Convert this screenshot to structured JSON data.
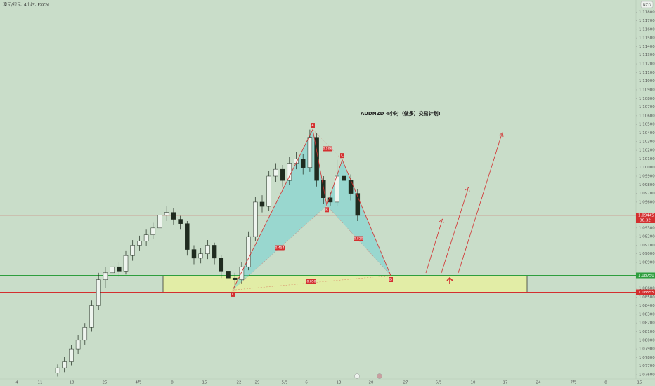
{
  "chart_data": {
    "type": "candlestick",
    "symbol_header": "澳元/纽元, 4小时, FXCM",
    "currency_badge": "NZD",
    "title": "AUDNZD 4小时（做多）交易计划!",
    "ylim": [
      1.0747,
      1.1194
    ],
    "yticks": [
      {
        "value": 1.076,
        "label": "1.07600"
      },
      {
        "value": 1.077,
        "label": "1.07700"
      },
      {
        "value": 1.078,
        "label": "1.07800"
      },
      {
        "value": 1.079,
        "label": "1.07900"
      },
      {
        "value": 1.08,
        "label": "1.08000"
      },
      {
        "value": 1.081,
        "label": "1.08100"
      },
      {
        "value": 1.082,
        "label": "1.08200"
      },
      {
        "value": 1.083,
        "label": "1.08300"
      },
      {
        "value": 1.084,
        "label": "1.08400"
      },
      {
        "value": 1.085,
        "label": "1.08500"
      },
      {
        "value": 1.086,
        "label": "1.08600"
      },
      {
        "value": 1.089,
        "label": "1.08900"
      },
      {
        "value": 1.09,
        "label": "1.09000"
      },
      {
        "value": 1.091,
        "label": "1.09100"
      },
      {
        "value": 1.092,
        "label": "1.09200"
      },
      {
        "value": 1.093,
        "label": "1.09300"
      },
      {
        "value": 1.096,
        "label": "1.09600"
      },
      {
        "value": 1.097,
        "label": "1.09700"
      },
      {
        "value": 1.098,
        "label": "1.09800"
      },
      {
        "value": 1.099,
        "label": "1.09900"
      },
      {
        "value": 1.1,
        "label": "1.10000"
      },
      {
        "value": 1.101,
        "label": "1.10100"
      },
      {
        "value": 1.102,
        "label": "1.10200"
      },
      {
        "value": 1.103,
        "label": "1.10300"
      },
      {
        "value": 1.104,
        "label": "1.10400"
      },
      {
        "value": 1.105,
        "label": "1.10500"
      },
      {
        "value": 1.106,
        "label": "1.10600"
      },
      {
        "value": 1.107,
        "label": "1.10700"
      },
      {
        "value": 1.108,
        "label": "1.10800"
      },
      {
        "value": 1.109,
        "label": "1.10900"
      },
      {
        "value": 1.11,
        "label": "1.11000"
      },
      {
        "value": 1.111,
        "label": "1.11100"
      },
      {
        "value": 1.112,
        "label": "1.11200"
      },
      {
        "value": 1.113,
        "label": "1.11300"
      },
      {
        "value": 1.114,
        "label": "1.11400"
      },
      {
        "value": 1.115,
        "label": "1.11500"
      },
      {
        "value": 1.116,
        "label": "1.11600"
      },
      {
        "value": 1.117,
        "label": "1.11700"
      },
      {
        "value": 1.118,
        "label": "1.11800"
      }
    ],
    "x_labels": [
      "4",
      "11",
      "18",
      "25",
      "4月",
      "8",
      "15",
      "22",
      "29",
      "5月",
      "6",
      "13",
      "20",
      "27",
      "6月",
      "10",
      "17",
      "24",
      "7月",
      "8",
      "15"
    ],
    "up_color": "#eef4ee",
    "down_color": "#1f2b1f",
    "open": [
      1.0762,
      1.0768,
      1.0775,
      1.079,
      1.08,
      1.0815,
      1.084,
      1.087,
      1.0878,
      1.0885,
      1.088,
      1.0898,
      1.091,
      1.0915,
      1.0922,
      1.093,
      1.0945,
      1.0948,
      1.094,
      1.0935,
      1.0905,
      1.0895,
      1.09,
      1.091,
      1.0895,
      1.088,
      1.0872,
      1.087,
      1.0885,
      1.092,
      1.096,
      1.0955,
      1.099,
      1.0998,
      1.0985,
      1.1005,
      1.101,
      1.1,
      1.1035,
      1.0985,
      1.0965,
      1.096,
      1.099,
      1.0985,
      1.097
    ],
    "high": [
      1.0772,
      1.0781,
      1.0795,
      1.0806,
      1.082,
      1.0846,
      1.0878,
      1.0885,
      1.0892,
      1.089,
      1.0904,
      1.0916,
      1.0921,
      1.0928,
      1.0936,
      1.0951,
      1.0955,
      1.0953,
      1.0944,
      1.0938,
      1.091,
      1.0907,
      1.0916,
      1.0913,
      1.0899,
      1.0885,
      1.0878,
      1.089,
      1.0926,
      1.0966,
      1.0968,
      1.0996,
      1.1005,
      1.1003,
      1.1012,
      1.1018,
      1.1016,
      1.1044,
      1.104,
      1.099,
      1.0972,
      1.1009,
      1.0998,
      1.0992,
      1.0975
    ],
    "low": [
      1.0758,
      1.0763,
      1.0771,
      1.0784,
      1.0795,
      1.081,
      1.0835,
      1.086,
      1.0872,
      1.0873,
      1.0876,
      1.0892,
      1.0904,
      1.0909,
      1.0917,
      1.0925,
      1.0938,
      1.0934,
      1.0928,
      1.0898,
      1.0888,
      1.0889,
      1.0894,
      1.0888,
      1.0872,
      1.0862,
      1.0858,
      1.0865,
      1.0881,
      1.0915,
      1.0948,
      1.095,
      1.0983,
      1.0978,
      1.098,
      1.0998,
      1.0992,
      1.0995,
      1.0978,
      1.0958,
      1.0956,
      1.0955,
      1.0975,
      1.0962,
      1.0938
    ],
    "close": [
      1.0768,
      1.0775,
      1.079,
      1.08,
      1.0815,
      1.084,
      1.087,
      1.0878,
      1.0885,
      1.088,
      1.0898,
      1.091,
      1.0915,
      1.0922,
      1.093,
      1.0945,
      1.0948,
      1.094,
      1.0935,
      1.0905,
      1.0895,
      1.09,
      1.091,
      1.0895,
      1.088,
      1.0872,
      1.087,
      1.0885,
      1.092,
      1.096,
      1.0955,
      1.099,
      1.0998,
      1.0985,
      1.1005,
      1.101,
      1.1,
      1.1035,
      1.0985,
      1.0965,
      1.096,
      1.099,
      1.0985,
      1.097,
      1.09445
    ],
    "current_price": {
      "value": 1.09445,
      "label": "1.09445",
      "countdown": "06:32",
      "color": "#d32f2f"
    },
    "levels": [
      {
        "value": 1.0875,
        "label": "1.08750",
        "color": "#2e9e3e"
      },
      {
        "value": 1.08555,
        "label": "1.08555",
        "color": "#d32f2f"
      }
    ],
    "zone": {
      "top": 1.0875,
      "bottom": 1.08555,
      "color": "#e6f0a0"
    },
    "pattern": {
      "points": [
        "X",
        "A",
        "B",
        "C",
        "D"
      ],
      "prices": [
        1.0858,
        1.1044,
        1.0956,
        1.1009,
        1.0875
      ],
      "ratios": [
        "0.454",
        "0.596",
        "0.820",
        "0.850"
      ],
      "color": "#d32f2f",
      "fill": "#5fd0d8"
    }
  }
}
